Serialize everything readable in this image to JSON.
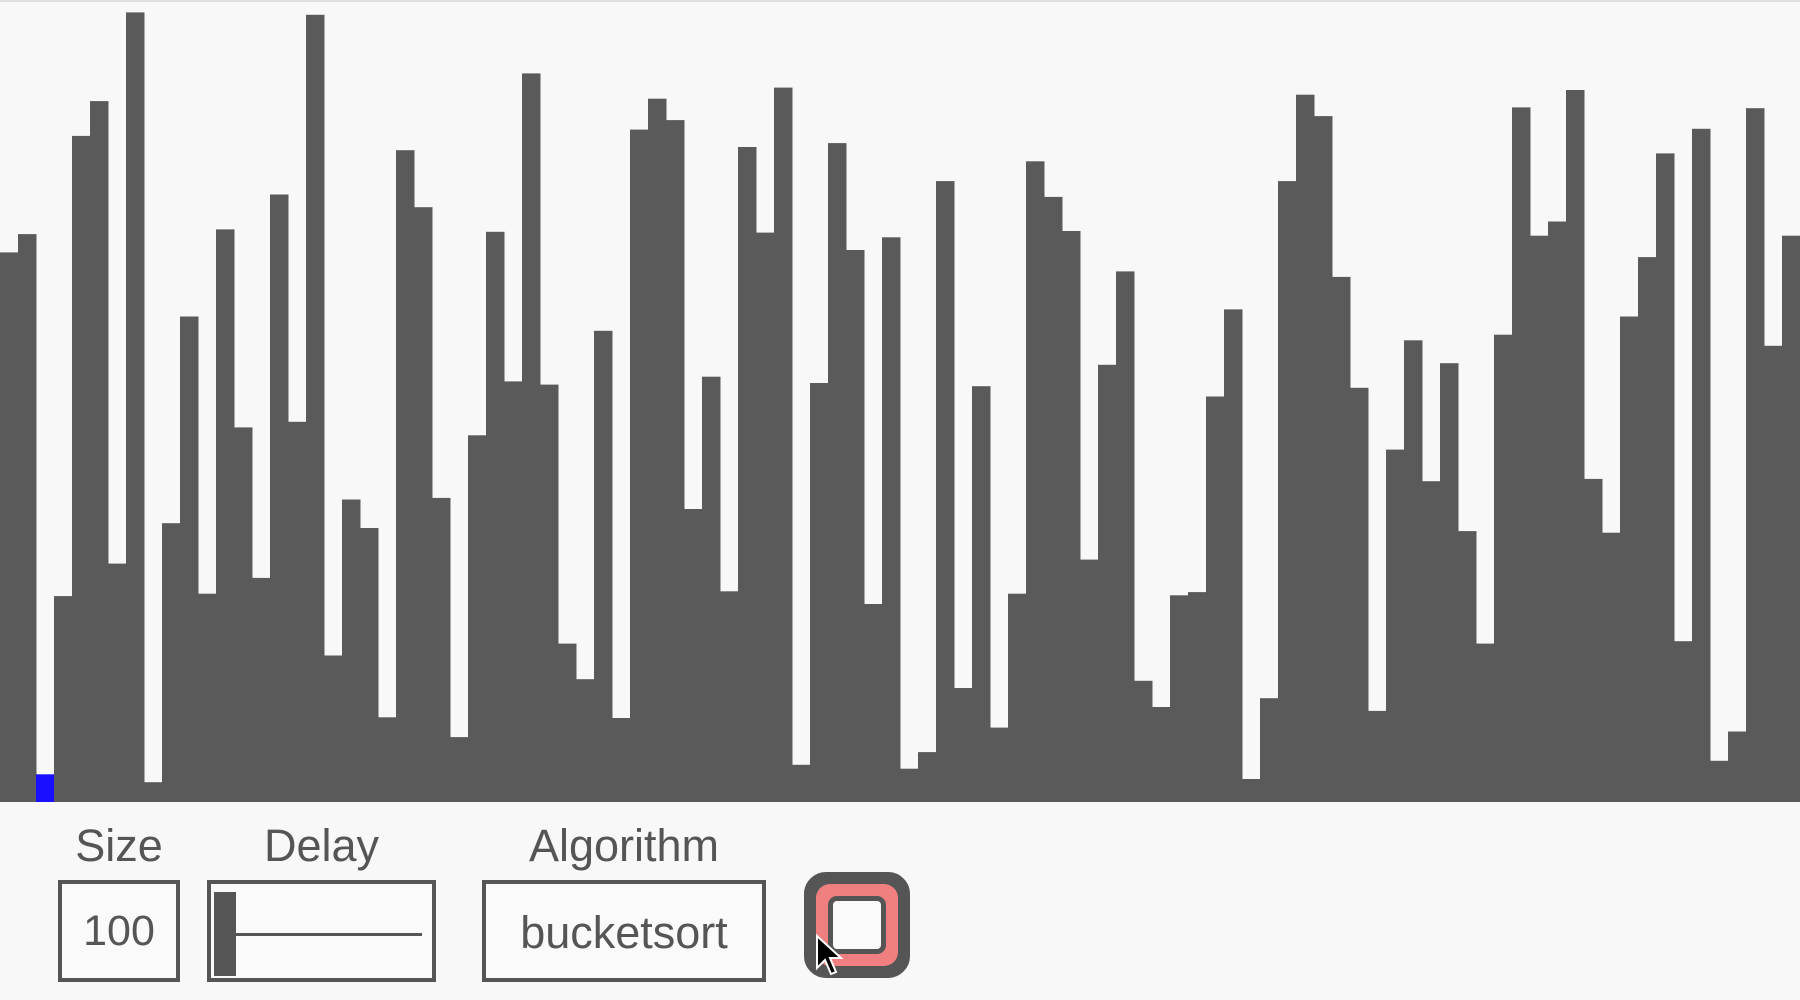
{
  "bars": {
    "max_value": 100,
    "bar_color": "#5a5a5a",
    "highlight_color": "#1a10ff",
    "highlight_index": 2,
    "values": [
      69.4,
      71.7,
      3.5,
      26.0,
      84.1,
      88.5,
      30.1,
      99.7,
      2.5,
      35.2,
      61.3,
      26.3,
      72.3,
      47.3,
      28.3,
      76.7,
      48.0,
      99.4,
      18.5,
      38.2,
      34.6,
      10.7,
      82.3,
      75.1,
      38.4,
      8.2,
      46.3,
      72.0,
      53.1,
      92.0,
      52.7,
      20.0,
      15.5,
      59.5,
      10.6,
      84.9,
      88.8,
      86.1,
      37.0,
      53.7,
      26.6,
      82.7,
      71.9,
      90.2,
      4.7,
      52.9,
      83.2,
      69.7,
      25.0,
      71.3,
      4.2,
      6.3,
      78.4,
      14.4,
      52.5,
      9.4,
      26.3,
      80.9,
      76.4,
      72.1,
      30.6,
      55.2,
      67.0,
      15.3,
      12.0,
      26.1,
      26.5,
      51.2,
      62.2,
      2.9,
      13.1,
      78.4,
      89.3,
      86.6,
      66.3,
      52.3,
      11.5,
      44.5,
      58.3,
      40.5,
      55.4,
      34.2,
      20.0,
      59.0,
      87.7,
      71.5,
      73.3,
      89.9,
      40.8,
      34.0,
      61.3,
      68.8,
      81.9,
      20.3,
      85.0,
      5.2,
      8.9,
      87.6,
      57.6,
      71.5
    ]
  },
  "controls": {
    "size": {
      "label": "Size",
      "value": "100"
    },
    "delay": {
      "label": "Delay",
      "value": 0
    },
    "algorithm": {
      "label": "Algorithm",
      "value": "bucketsort"
    }
  },
  "start_button": {
    "icon": "square-stop-icon",
    "accent_color": "#f08080"
  }
}
